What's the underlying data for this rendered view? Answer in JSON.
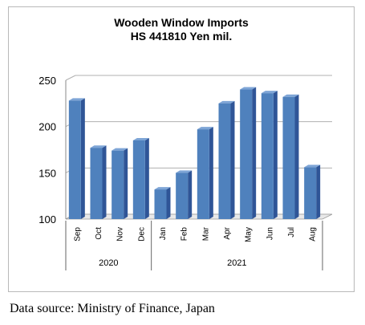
{
  "chart_data": {
    "type": "bar",
    "title": "Wooden Window Imports",
    "subtitle": "HS 441810 Yen mil.",
    "xlabel": "",
    "ylabel": "",
    "categories": [
      "Sep",
      "Oct",
      "Nov",
      "Dec",
      "Jan",
      "Feb",
      "Mar",
      "Apr",
      "May",
      "Jun",
      "Jul",
      "Aug"
    ],
    "values": [
      228,
      177,
      174,
      185,
      132,
      150,
      197,
      225,
      240,
      236,
      232,
      156
    ],
    "year_groups": [
      {
        "label": "2020",
        "start": 0,
        "end": 3
      },
      {
        "label": "2021",
        "start": 4,
        "end": 11
      }
    ],
    "ylim": [
      100,
      250
    ],
    "yticks": [
      100,
      150,
      200,
      250
    ],
    "grid": true,
    "legend": "none",
    "colors": {
      "bar": "#4f81bd",
      "bar_dark": "#2f5597",
      "bar_top": "#7ea5d6",
      "grid": "#b0b0b0"
    }
  },
  "source_note": "Data source: Ministry of Finance, Japan"
}
